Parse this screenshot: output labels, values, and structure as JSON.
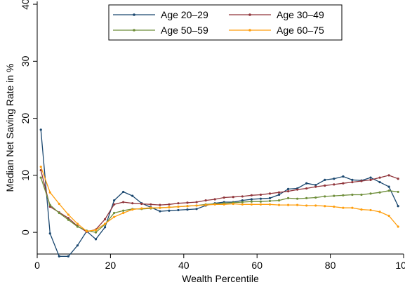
{
  "chart_data": {
    "type": "line",
    "title": "",
    "xlabel": "Wealth Percentile",
    "ylabel": "Median Net Saving Rate in %",
    "xlim": [
      0,
      100
    ],
    "ylim": [
      -3.8,
      40.5
    ],
    "xticks": [
      0,
      20,
      40,
      60,
      80,
      100
    ],
    "yticks": [
      0,
      10,
      20,
      30,
      40
    ],
    "grid": false,
    "legend_position": "top-center",
    "series": [
      {
        "name": "Age 20–29",
        "color": "#1a476f",
        "x": [
          1,
          3.5,
          6,
          8.5,
          11,
          13.5,
          16,
          18.5,
          21,
          23.5,
          26,
          28.5,
          31,
          33.5,
          36,
          38.5,
          41,
          43.5,
          46,
          48.5,
          51,
          53.5,
          56,
          58.5,
          61,
          63.5,
          66,
          68.5,
          71,
          73.5,
          76,
          78.5,
          81,
          83.5,
          86,
          88.5,
          91,
          93.5,
          96,
          98.5
        ],
        "y": [
          18.0,
          -0.2,
          -4.2,
          -4.2,
          -2.3,
          0.2,
          -1.2,
          0.9,
          5.6,
          7.1,
          6.4,
          5.1,
          4.4,
          3.7,
          3.8,
          3.9,
          4.0,
          4.1,
          4.7,
          5.1,
          5.3,
          5.3,
          5.6,
          5.8,
          5.9,
          6.0,
          6.6,
          7.6,
          7.7,
          8.6,
          8.3,
          9.2,
          9.4,
          9.8,
          9.2,
          9.1,
          9.6,
          8.8,
          8.0,
          4.6
        ]
      },
      {
        "name": "Age 30–49",
        "color": "#90353b",
        "x": [
          1,
          3.5,
          6,
          8.5,
          11,
          13.5,
          16,
          18.5,
          21,
          23.5,
          26,
          28.5,
          31,
          33.5,
          36,
          38.5,
          41,
          43.5,
          46,
          48.5,
          51,
          53.5,
          56,
          58.5,
          61,
          63.5,
          66,
          68.5,
          71,
          73.5,
          76,
          78.5,
          81,
          83.5,
          86,
          88.5,
          91,
          93.5,
          96,
          98.5
        ],
        "y": [
          10.9,
          4.5,
          3.5,
          2.5,
          1.1,
          0.1,
          0.5,
          2.3,
          4.9,
          5.3,
          5.1,
          5.0,
          4.9,
          4.8,
          4.9,
          5.1,
          5.2,
          5.3,
          5.6,
          5.8,
          6.1,
          6.2,
          6.3,
          6.5,
          6.6,
          6.8,
          7.0,
          7.2,
          7.5,
          7.7,
          8.0,
          8.2,
          8.4,
          8.6,
          8.8,
          9.0,
          9.2,
          9.6,
          10.0,
          9.4
        ]
      },
      {
        "name": "Age 50–59",
        "color": "#6e8e3a",
        "x": [
          1,
          3.5,
          6,
          8.5,
          11,
          13.5,
          16,
          18.5,
          21,
          23.5,
          26,
          28.5,
          31,
          33.5,
          36,
          38.5,
          41,
          43.5,
          46,
          48.5,
          51,
          53.5,
          56,
          58.5,
          61,
          63.5,
          66,
          68.5,
          71,
          73.5,
          76,
          78.5,
          81,
          83.5,
          86,
          88.5,
          91,
          93.5,
          96,
          98.5
        ],
        "y": [
          9.6,
          4.8,
          3.4,
          2.2,
          1.0,
          0.3,
          0.0,
          1.4,
          3.4,
          3.8,
          4.1,
          4.1,
          4.2,
          4.3,
          4.4,
          4.5,
          4.6,
          4.7,
          4.9,
          5.0,
          5.1,
          5.2,
          5.3,
          5.4,
          5.4,
          5.5,
          5.6,
          6.0,
          5.9,
          6.0,
          6.1,
          6.3,
          6.4,
          6.5,
          6.6,
          6.6,
          6.8,
          7.0,
          7.3,
          7.1
        ]
      },
      {
        "name": "Age 60–75",
        "color": "#ff9e0d",
        "x": [
          1,
          3.5,
          6,
          8.5,
          11,
          13.5,
          16,
          18.5,
          21,
          23.5,
          26,
          28.5,
          31,
          33.5,
          36,
          38.5,
          41,
          43.5,
          46,
          48.5,
          51,
          53.5,
          56,
          58.5,
          61,
          63.5,
          66,
          68.5,
          71,
          73.5,
          76,
          78.5,
          81,
          83.5,
          86,
          88.5,
          91,
          93.5,
          96,
          98.5
        ],
        "y": [
          11.5,
          7.0,
          5.0,
          3.1,
          1.5,
          0.2,
          0.4,
          1.5,
          2.7,
          3.4,
          4.0,
          4.2,
          4.3,
          4.3,
          4.4,
          4.5,
          4.6,
          4.7,
          4.8,
          4.9,
          4.9,
          5.0,
          4.9,
          4.9,
          4.9,
          4.9,
          4.8,
          4.8,
          4.8,
          4.7,
          4.7,
          4.6,
          4.5,
          4.3,
          4.3,
          4.0,
          3.9,
          3.6,
          2.9,
          1.0
        ]
      }
    ]
  }
}
